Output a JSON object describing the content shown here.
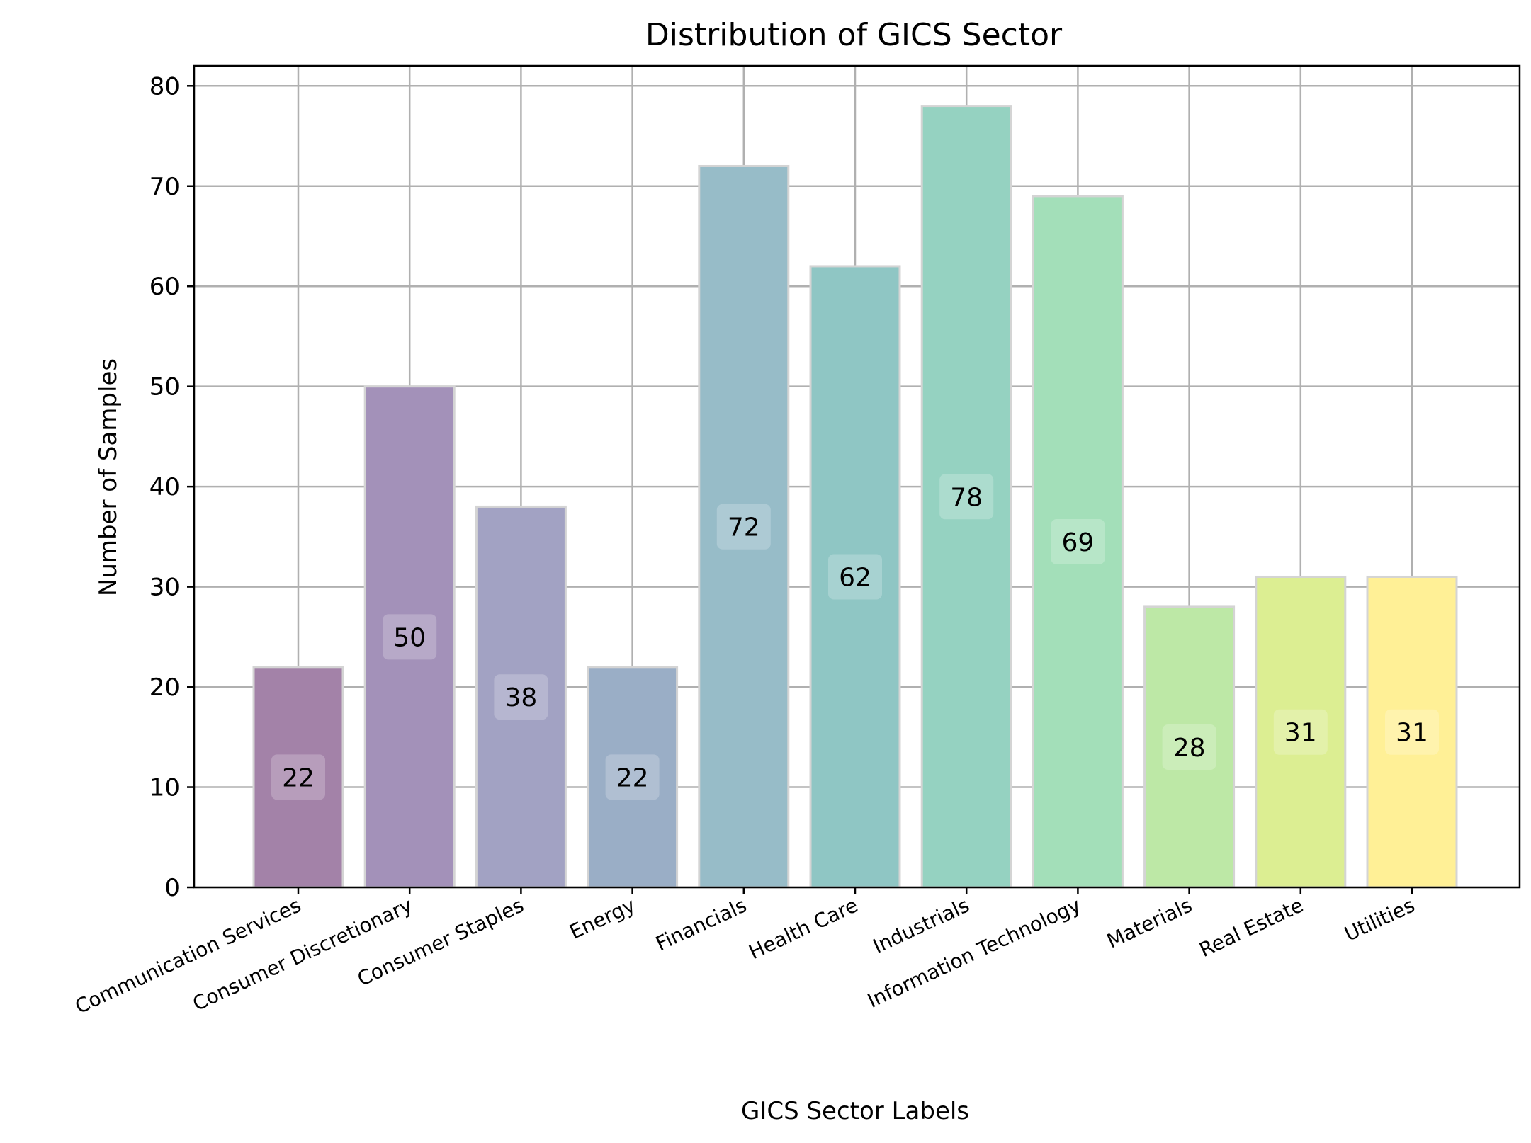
{
  "chart_data": {
    "type": "bar",
    "title": "Distribution of GICS Sector",
    "xlabel": "GICS Sector Labels",
    "ylabel": "Number of Samples",
    "categories": [
      "Communication Services",
      "Consumer Discretionary",
      "Consumer Staples",
      "Energy",
      "Financials",
      "Health Care",
      "Industrials",
      "Information Technology",
      "Materials",
      "Real Estate",
      "Utilities"
    ],
    "values": [
      22,
      50,
      38,
      22,
      72,
      62,
      78,
      69,
      28,
      31,
      31
    ],
    "colors": [
      "#a382a8",
      "#a391b9",
      "#a2a2c3",
      "#9aaec6",
      "#97bcc8",
      "#8fc6c4",
      "#95d2c1",
      "#a3dfb9",
      "#bde8a6",
      "#dcee92",
      "#fff096"
    ],
    "ylim": [
      0,
      82
    ],
    "yticks": [
      0,
      10,
      20,
      30,
      40,
      50,
      60,
      70,
      80
    ],
    "grid": true,
    "legend": "none"
  }
}
